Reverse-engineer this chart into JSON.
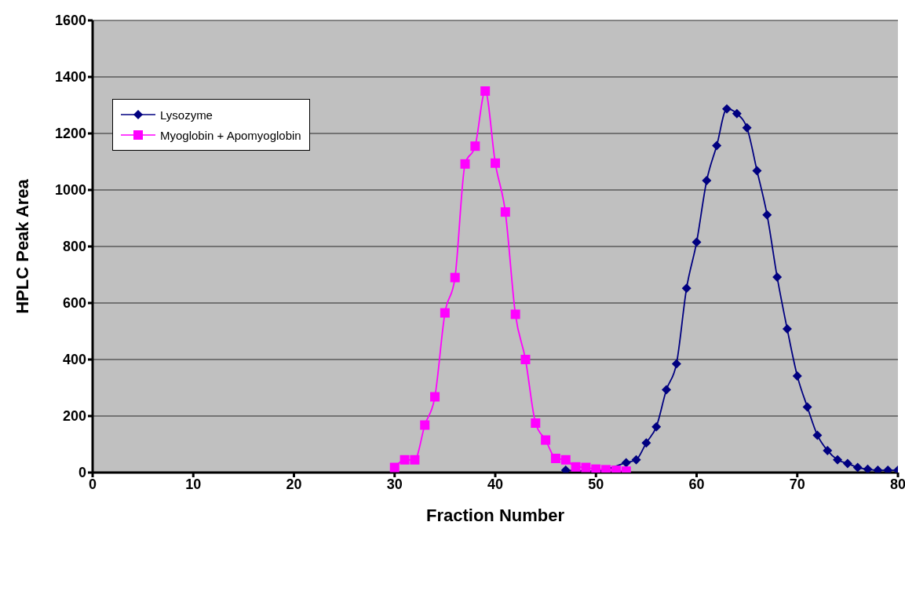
{
  "chart_data": {
    "type": "line",
    "xlabel": "Fraction Number",
    "ylabel": "HPLC Peak Area",
    "xlim": [
      0,
      80
    ],
    "xticks": [
      0,
      10,
      20,
      30,
      40,
      50,
      60,
      70,
      80
    ],
    "ylim": [
      0,
      1600
    ],
    "yticks": [
      0,
      200,
      400,
      600,
      800,
      1000,
      1200,
      1400,
      1600
    ],
    "grid": "y",
    "legend": "top left",
    "series": [
      {
        "name": "Lysozyme",
        "color": "#000080",
        "marker": "diamond",
        "x": [
          47,
          48,
          49,
          50,
          51,
          52,
          53,
          54,
          55,
          56,
          57,
          58,
          59,
          60,
          61,
          62,
          63,
          64,
          65,
          66,
          67,
          68,
          69,
          70,
          71,
          72,
          73,
          74,
          75,
          76,
          77,
          78,
          79,
          80
        ],
        "values": [
          8,
          null,
          null,
          5,
          null,
          null,
          35,
          45,
          105,
          162,
          293,
          385,
          652,
          815,
          1033,
          1157,
          1287,
          1270,
          1220,
          1068,
          912,
          692,
          508,
          342,
          232,
          132,
          78,
          45,
          32,
          18,
          12,
          8,
          8,
          8
        ]
      },
      {
        "name": "Myoglobin + Apomyoglobin",
        "color": "#ff00ff",
        "marker": "square",
        "x": [
          30,
          31,
          32,
          33,
          34,
          35,
          36,
          37,
          38,
          39,
          40,
          41,
          42,
          43,
          44,
          45,
          46,
          47,
          48,
          49,
          50,
          51,
          52,
          53
        ],
        "values": [
          18,
          45,
          45,
          168,
          268,
          565,
          690,
          1092,
          1155,
          1350,
          1095,
          922,
          560,
          400,
          175,
          115,
          50,
          45,
          20,
          18,
          12,
          10,
          8,
          5
        ]
      }
    ]
  }
}
